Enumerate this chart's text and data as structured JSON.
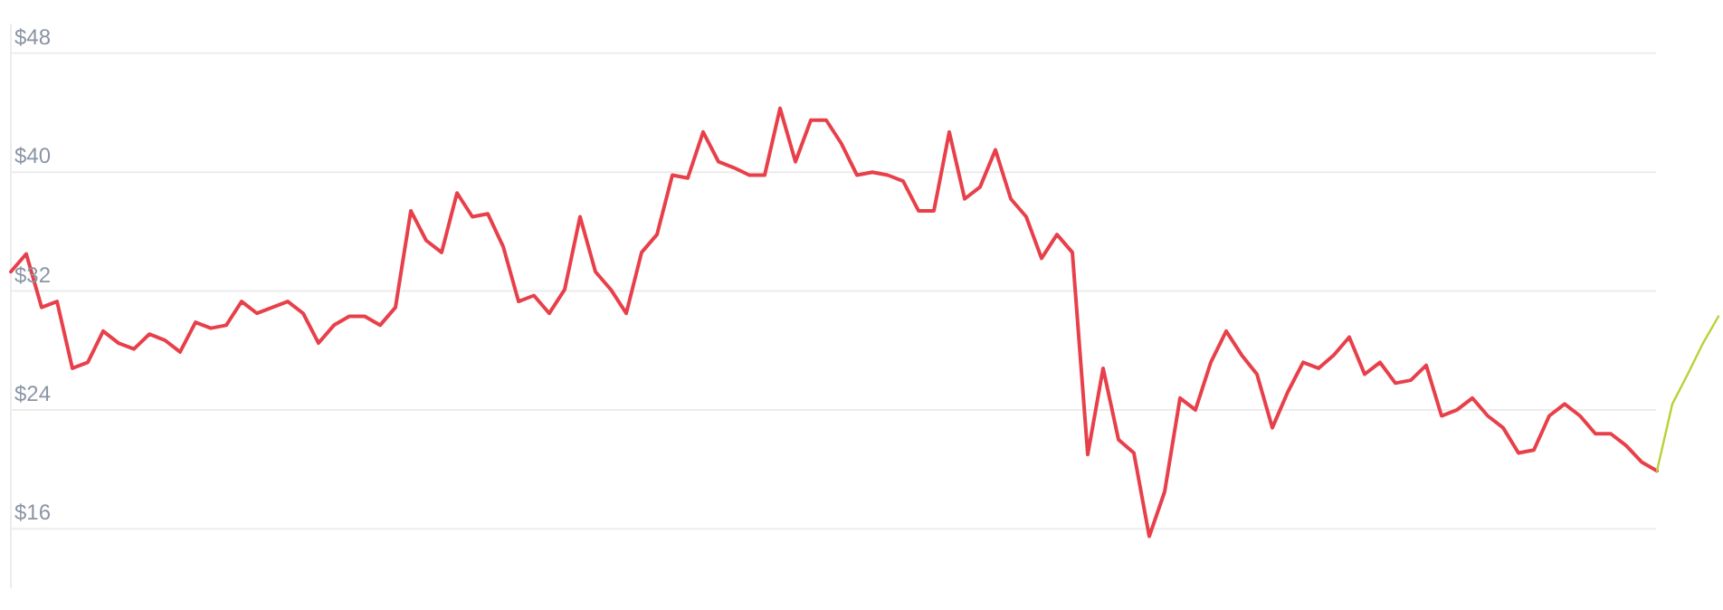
{
  "chart_data": {
    "type": "line",
    "categories": [
      null,
      null,
      null,
      null,
      null,
      null,
      null,
      null,
      null,
      null,
      null,
      null,
      null,
      null,
      null,
      null,
      null,
      null,
      null,
      null,
      null,
      null,
      null,
      null,
      null,
      null,
      null,
      null,
      null,
      null,
      null,
      null,
      null,
      null,
      null,
      null,
      null,
      null,
      null,
      null,
      null,
      null,
      null,
      null,
      null,
      null,
      null,
      null,
      null,
      null,
      null,
      null,
      null,
      null,
      null,
      null,
      null,
      null,
      null,
      null,
      null,
      null,
      null,
      null,
      null,
      null,
      null,
      null,
      null,
      null,
      null,
      null,
      null,
      null,
      null,
      null,
      null,
      null,
      null,
      null,
      null,
      null,
      null,
      null,
      null,
      null,
      null,
      null,
      null,
      null,
      null,
      null,
      null,
      null,
      null,
      null,
      null,
      null,
      null,
      null,
      null,
      null,
      null,
      null,
      null,
      null,
      null,
      null,
      null,
      null,
      null,
      null
    ],
    "series": [
      {
        "color": "#e8404a",
        "values": [
          33.3,
          34.5,
          30.9,
          31.3,
          26.8,
          27.2,
          29.3,
          28.5,
          28.1,
          29.1,
          28.7,
          27.9,
          29.9,
          29.5,
          29.7,
          31.3,
          30.5,
          30.9,
          31.3,
          30.5,
          28.5,
          29.7,
          30.3,
          30.3,
          29.7,
          30.9,
          37.4,
          35.4,
          34.6,
          38.6,
          37.0,
          37.2,
          35.0,
          31.3,
          31.7,
          30.5,
          32.1,
          37.0,
          33.3,
          32.1,
          30.5,
          34.6,
          35.8,
          39.8,
          39.6,
          42.7,
          40.7,
          40.3,
          39.8,
          39.8,
          44.3,
          40.7,
          43.5,
          43.5,
          41.9,
          39.8,
          40.0,
          39.8,
          39.4,
          37.4,
          37.4,
          42.7,
          38.2,
          39.0,
          41.5,
          38.2,
          37.0,
          34.2,
          35.8,
          34.6,
          21.0,
          26.8,
          22.0,
          21.1,
          15.5,
          18.5,
          24.8,
          24.0,
          27.2,
          29.3,
          27.7,
          26.4,
          22.8,
          25.2,
          27.2,
          26.8,
          27.7,
          28.9,
          26.4,
          27.2,
          25.8,
          26.0,
          27.0,
          23.6,
          24.0,
          24.8,
          23.6,
          22.8,
          21.1,
          21.3,
          23.6,
          24.4,
          23.6,
          22.4,
          22.4,
          21.6,
          20.5,
          19.9,
          null,
          null,
          null,
          null
        ]
      },
      {
        "color": "#b6d334",
        "values": [
          null,
          null,
          null,
          null,
          null,
          null,
          null,
          null,
          null,
          null,
          null,
          null,
          null,
          null,
          null,
          null,
          null,
          null,
          null,
          null,
          null,
          null,
          null,
          null,
          null,
          null,
          null,
          null,
          null,
          null,
          null,
          null,
          null,
          null,
          null,
          null,
          null,
          null,
          null,
          null,
          null,
          null,
          null,
          null,
          null,
          null,
          null,
          null,
          null,
          null,
          null,
          null,
          null,
          null,
          null,
          null,
          null,
          null,
          null,
          null,
          null,
          null,
          null,
          null,
          null,
          null,
          null,
          null,
          null,
          null,
          null,
          null,
          null,
          null,
          null,
          null,
          null,
          null,
          null,
          null,
          null,
          null,
          null,
          null,
          null,
          null,
          null,
          null,
          null,
          null,
          null,
          null,
          null,
          null,
          null,
          null,
          null,
          null,
          null,
          null,
          null,
          null,
          null,
          null,
          null,
          null,
          null,
          19.9,
          24.4,
          26.4,
          28.5,
          30.3
        ]
      }
    ],
    "yticks": [
      {
        "value": 16,
        "label": "$16"
      },
      {
        "value": 24,
        "label": "$24"
      },
      {
        "value": 32,
        "label": "$32"
      },
      {
        "value": 40,
        "label": "$40"
      },
      {
        "value": 48,
        "label": "$48"
      }
    ],
    "ylim": [
      12,
      50
    ],
    "grid": true,
    "tick_labels": "y"
  }
}
